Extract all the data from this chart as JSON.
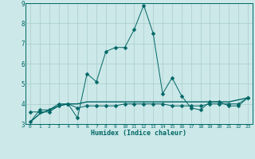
{
  "xlabel": "Humidex (Indice chaleur)",
  "x": [
    0,
    1,
    2,
    3,
    4,
    5,
    6,
    7,
    8,
    9,
    10,
    11,
    12,
    13,
    14,
    15,
    16,
    17,
    18,
    19,
    20,
    21,
    22,
    23
  ],
  "line1": [
    3.1,
    3.7,
    3.7,
    4.0,
    4.0,
    3.3,
    5.5,
    5.1,
    6.6,
    6.8,
    6.8,
    7.7,
    8.9,
    7.5,
    4.5,
    5.3,
    4.4,
    3.8,
    3.7,
    4.1,
    4.1,
    3.9,
    3.9,
    4.3
  ],
  "line2": [
    3.6,
    3.6,
    3.6,
    3.9,
    4.0,
    3.8,
    3.9,
    3.9,
    3.9,
    3.9,
    4.0,
    4.0,
    4.0,
    4.0,
    4.0,
    3.9,
    3.9,
    3.9,
    3.9,
    4.0,
    4.0,
    4.0,
    4.0,
    4.3
  ],
  "line3": [
    3.1,
    3.5,
    3.7,
    3.9,
    4.0,
    4.0,
    4.1,
    4.1,
    4.1,
    4.1,
    4.1,
    4.1,
    4.1,
    4.1,
    4.1,
    4.1,
    4.1,
    4.1,
    4.1,
    4.1,
    4.1,
    4.1,
    4.2,
    4.3
  ],
  "line_color": "#006666",
  "bg_color": "#cce8e8",
  "grid_color": "#aacccc",
  "ylim": [
    3,
    9
  ],
  "yticks": [
    3,
    4,
    5,
    6,
    7,
    8,
    9
  ],
  "marker": "D",
  "marker_size": 2.5,
  "lw1": 0.7,
  "lw2": 0.7,
  "lw3": 1.0
}
